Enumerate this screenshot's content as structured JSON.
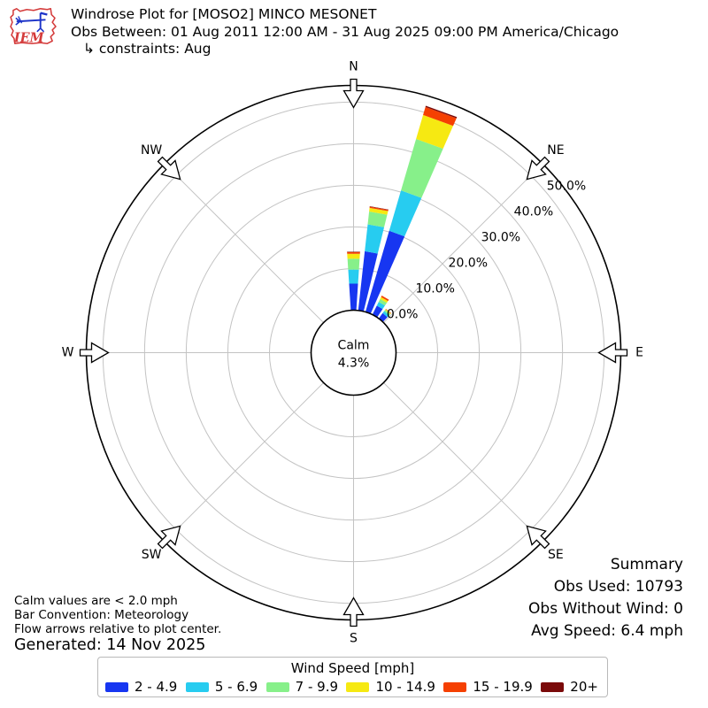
{
  "header": {
    "title": "Windrose Plot for [MOSO2] MINCO MESONET",
    "subtitle": "Obs Between: 01 Aug 2011 12:00 AM - 31 Aug 2025 09:00 PM America/Chicago",
    "constraint": "↳ constraints: Aug",
    "logo_text": "IEM"
  },
  "summary": {
    "title": "Summary",
    "obs_used": "Obs Used: 10793",
    "obs_without_wind": "Obs Without Wind: 0",
    "avg_speed": "Avg Speed: 6.4 mph"
  },
  "notes": {
    "line1": "Calm values are < 2.0 mph",
    "line2": "Bar Convention: Meteorology",
    "line3": "Flow arrows relative to plot center.",
    "generated": "Generated: 14 Nov 2025"
  },
  "legend": {
    "title": "Wind Speed [mph]"
  },
  "chart_data": {
    "type": "windrose",
    "title": "Windrose Plot for [MOSO2] MINCO MESONET",
    "units": "mph",
    "direction_labels": [
      "N",
      "NE",
      "E",
      "SE",
      "S",
      "SW",
      "W",
      "NW"
    ],
    "direction_degrees": [
      0,
      45,
      90,
      135,
      180,
      225,
      270,
      315
    ],
    "ring_labels": [
      "0.0%",
      "10.0%",
      "20.0%",
      "30.0%",
      "40.0%",
      "50.0%"
    ],
    "ring_values_pct": [
      0,
      10,
      20,
      30,
      40,
      50
    ],
    "r_axis_max_pct": 54,
    "grid": true,
    "calm": {
      "label": "Calm",
      "value": "4.3%"
    },
    "speed_bins": [
      {
        "label": "2 - 4.9",
        "color": "#1736f1"
      },
      {
        "label": "5 - 6.9",
        "color": "#27ccf0"
      },
      {
        "label": "7 - 9.9",
        "color": "#87f08a"
      },
      {
        "label": "10 - 14.9",
        "color": "#f6e912"
      },
      {
        "label": "15 - 19.9",
        "color": "#f54002"
      },
      {
        "label": "20+",
        "color": "#7a0a0a"
      }
    ],
    "bar_half_width_deg": 3.7,
    "bars": [
      {
        "dir_deg": 0,
        "segments_pct": [
          6.4,
          3.4,
          2.6,
          1.2,
          0.4,
          0.1
        ],
        "total_pct": 14.1
      },
      {
        "dir_deg": 10,
        "segments_pct": [
          14.3,
          6.5,
          3.1,
          0.9,
          0.3,
          0.1
        ],
        "total_pct": 25.2
      },
      {
        "dir_deg": 20,
        "segments_pct": [
          20.3,
          10.1,
          12.9,
          6.0,
          2.0,
          0.3
        ],
        "total_pct": 51.6
      },
      {
        "dir_deg": 30,
        "segments_pct": [
          2.4,
          1.0,
          0.8,
          0.5,
          0.4,
          0.0
        ],
        "total_pct": 5.1
      },
      {
        "dir_deg": 40,
        "segments_pct": [
          1.6,
          0.6,
          0.4,
          0.2,
          0.1,
          0.0
        ],
        "total_pct": 2.9
      }
    ]
  }
}
